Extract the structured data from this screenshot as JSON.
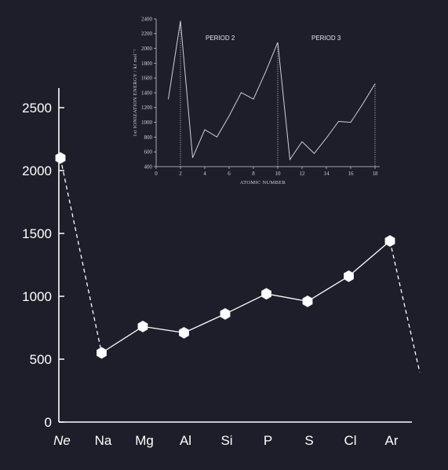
{
  "colors": {
    "background": "#1e1e2a",
    "foreground": "#ffffff",
    "inset_foreground": "#cfcfd6"
  },
  "chart_data": [
    {
      "type": "line",
      "title": "",
      "xlabel": "",
      "ylabel": "",
      "categories": [
        "Ne",
        "Na",
        "Mg",
        "Al",
        "Si",
        "P",
        "S",
        "Cl",
        "Ar"
      ],
      "italic_categories": [
        "Ne"
      ],
      "yticks": [
        "0",
        "500",
        "1000",
        "1500",
        "2000",
        "2500"
      ],
      "ylim": [
        0,
        2700
      ],
      "values": [
        2100,
        550,
        760,
        710,
        860,
        1020,
        960,
        1160,
        1440
      ],
      "dashed_segments": [
        {
          "from": "Ne",
          "to": "Na"
        },
        {
          "from": "Ar",
          "to": "next",
          "value": 420
        }
      ],
      "marker": "white-hexagon",
      "grid": false
    },
    {
      "type": "line",
      "title": "",
      "xlabel": "ATOMIC NUMBER",
      "ylabel": "1st IONIZATION ENERGY / kJ mol⁻¹",
      "xticks": [
        "0",
        "2",
        "4",
        "6",
        "8",
        "10",
        "12",
        "14",
        "16",
        "18"
      ],
      "yticks": [
        "400",
        "600",
        "800",
        "1000",
        "1200",
        "1400",
        "1600",
        "1800",
        "2000",
        "2200",
        "2400"
      ],
      "xlim": [
        0,
        18.5
      ],
      "ylim": [
        400,
        2400
      ],
      "x": [
        1,
        2,
        3,
        4,
        5,
        6,
        7,
        8,
        9,
        10,
        11,
        12,
        13,
        14,
        15,
        16,
        17,
        18
      ],
      "y": [
        1312,
        2372,
        520,
        900,
        801,
        1086,
        1402,
        1314,
        1681,
        2081,
        496,
        738,
        578,
        787,
        1012,
        1000,
        1251,
        1521
      ],
      "dotted_markers_at_x": [
        2,
        10,
        18
      ],
      "annotations": [
        "PERIOD 2",
        "PERIOD 3"
      ],
      "grid": false
    }
  ]
}
